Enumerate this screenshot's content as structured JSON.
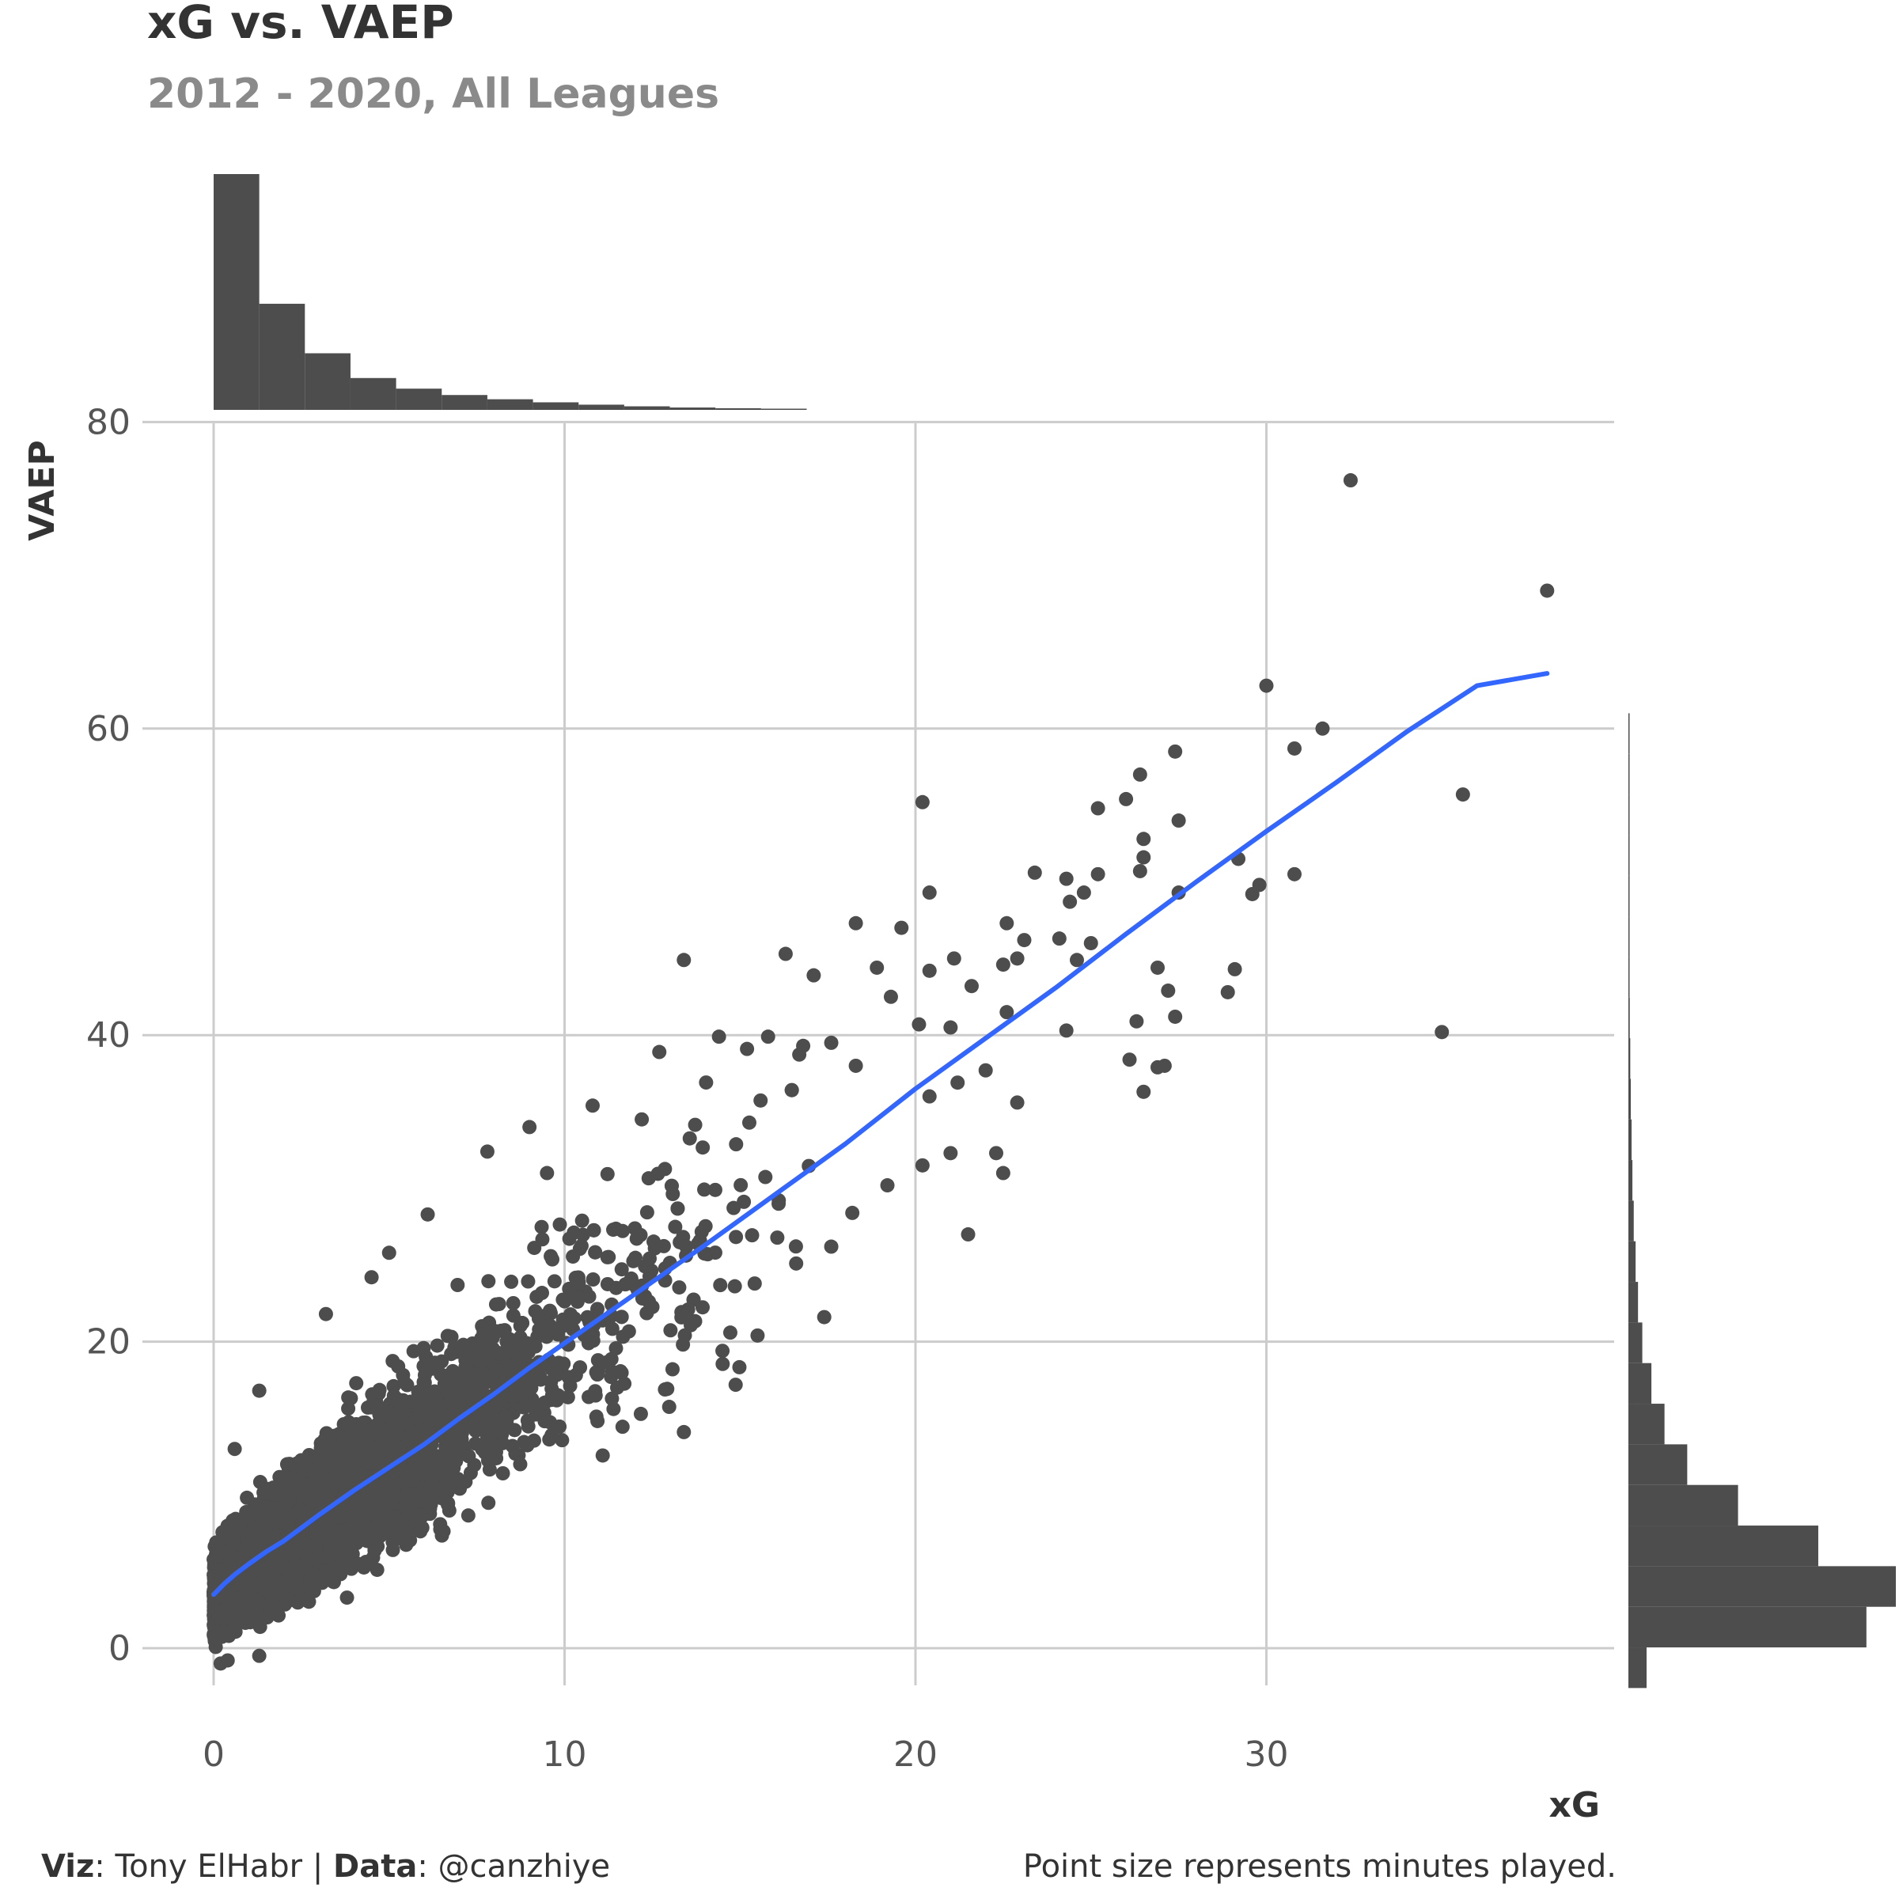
{
  "title": "xG vs. VAEP",
  "subtitle": "2012 - 2020, All Leagues",
  "caption": {
    "viz_label": "Viz",
    "viz_value": ": Tony ElHabr | ",
    "data_label": "Data",
    "data_value": ": @canzhiye",
    "note": "Point size represents minutes played."
  },
  "colors": {
    "points": "#4d4d4d",
    "fit_line": "#3366ff",
    "grid": "#cccccc",
    "bars": "#4d4d4d"
  },
  "chart_data": {
    "type": "scatter",
    "xlabel": "xG",
    "ylabel": "VAEP",
    "xlim": [
      0,
      40
    ],
    "ylim": [
      -4,
      80
    ],
    "x_ticks": [
      0,
      10,
      20,
      30
    ],
    "y_ticks": [
      0,
      20,
      40,
      60,
      80
    ],
    "x_tick_labels": [
      "0",
      "10",
      "20",
      "30"
    ],
    "y_tick_labels": [
      "0",
      "20",
      "40",
      "60",
      "80"
    ],
    "grid": true,
    "legend": "none",
    "outlier_points": [
      [
        32.4,
        76.2
      ],
      [
        38.0,
        69.0
      ],
      [
        30.0,
        62.8
      ],
      [
        31.6,
        60.0
      ],
      [
        30.8,
        58.7
      ],
      [
        35.6,
        55.7
      ],
      [
        20.2,
        55.2
      ],
      [
        27.4,
        58.5
      ],
      [
        26.4,
        57.0
      ],
      [
        25.2,
        54.8
      ],
      [
        26.0,
        55.4
      ],
      [
        27.5,
        54.0
      ],
      [
        26.5,
        52.8
      ],
      [
        26.5,
        51.6
      ],
      [
        26.4,
        50.7
      ],
      [
        29.2,
        51.5
      ],
      [
        30.8,
        50.5
      ],
      [
        29.8,
        49.8
      ],
      [
        29.6,
        49.2
      ],
      [
        27.5,
        49.3
      ],
      [
        23.4,
        50.6
      ],
      [
        24.3,
        50.2
      ],
      [
        25.2,
        50.5
      ],
      [
        24.4,
        48.7
      ],
      [
        24.8,
        49.3
      ],
      [
        20.4,
        49.3
      ],
      [
        35.0,
        40.2
      ],
      [
        29.1,
        44.3
      ],
      [
        28.9,
        42.8
      ],
      [
        27.2,
        42.9
      ],
      [
        26.9,
        44.4
      ],
      [
        27.4,
        41.2
      ],
      [
        26.3,
        40.9
      ],
      [
        24.3,
        40.3
      ],
      [
        26.5,
        36.3
      ],
      [
        26.9,
        37.9
      ],
      [
        27.1,
        38.0
      ],
      [
        26.1,
        38.4
      ],
      [
        22.9,
        35.6
      ],
      [
        21.5,
        27.0
      ],
      [
        22.5,
        31.0
      ],
      [
        22.3,
        32.3
      ],
      [
        13.4,
        44.9
      ],
      [
        16.3,
        45.3
      ],
      [
        18.3,
        47.3
      ],
      [
        19.6,
        47.0
      ],
      [
        20.4,
        44.2
      ],
      [
        21.6,
        43.2
      ],
      [
        22.6,
        47.3
      ],
      [
        23.1,
        46.2
      ],
      [
        24.1,
        46.3
      ],
      [
        24.6,
        44.9
      ],
      [
        25.0,
        46.0
      ],
      [
        22.5,
        44.6
      ],
      [
        21.1,
        45.0
      ],
      [
        17.1,
        43.9
      ],
      [
        18.9,
        44.4
      ],
      [
        19.3,
        42.5
      ],
      [
        20.1,
        40.7
      ],
      [
        22.6,
        41.5
      ],
      [
        22.9,
        45.0
      ],
      [
        21.0,
        40.5
      ],
      [
        20.4,
        36.0
      ],
      [
        21.2,
        36.9
      ],
      [
        22.0,
        37.7
      ],
      [
        20.2,
        31.5
      ],
      [
        21.0,
        32.3
      ],
      [
        19.2,
        30.2
      ],
      [
        18.2,
        28.4
      ],
      [
        17.6,
        26.2
      ],
      [
        16.6,
        25.1
      ],
      [
        17.4,
        21.6
      ],
      [
        12.2,
        34.5
      ],
      [
        12.7,
        38.9
      ],
      [
        14.4,
        39.9
      ],
      [
        15.8,
        39.9
      ],
      [
        15.2,
        39.1
      ],
      [
        16.8,
        39.3
      ],
      [
        17.6,
        39.5
      ],
      [
        18.3,
        38.0
      ],
      [
        16.1,
        29.0
      ],
      [
        15.5,
        20.4
      ],
      [
        14.5,
        19.4
      ],
      [
        11.5,
        17.0
      ],
      [
        13.4,
        14.1
      ],
      [
        0.6,
        13.0
      ],
      [
        9.5,
        31.0
      ],
      [
        7.8,
        32.4
      ],
      [
        9.0,
        34.0
      ],
      [
        10.8,
        35.4
      ],
      [
        6.1,
        28.3
      ],
      [
        5.0,
        25.8
      ],
      [
        4.5,
        24.2
      ],
      [
        3.2,
        21.8
      ],
      [
        1.3,
        16.8
      ],
      [
        0.4,
        -0.8
      ],
      [
        1.3,
        -0.5
      ],
      [
        2.2,
        4.5
      ],
      [
        3.8,
        3.3
      ],
      [
        0.2,
        -1.0
      ]
    ],
    "dense_cloud": {
      "description_of_bulk": "tens of thousands of player-season points concentrated along the trend",
      "x_range": [
        0,
        17
      ],
      "trend_spread_vaep": 3.2
    },
    "fit_line": {
      "x": [
        0,
        0.3,
        0.6,
        1,
        1.5,
        2,
        3,
        4,
        5,
        6,
        7,
        8,
        9,
        10,
        12,
        14,
        16,
        18,
        20,
        22,
        24,
        26,
        28,
        30,
        32,
        34,
        36,
        38
      ],
      "y": [
        3.5,
        4.2,
        4.8,
        5.5,
        6.3,
        7.0,
        8.7,
        10.3,
        11.8,
        13.3,
        15.0,
        16.6,
        18.3,
        19.9,
        23.1,
        26.3,
        29.6,
        32.9,
        36.5,
        39.8,
        43.1,
        46.6,
        50.0,
        53.3,
        56.5,
        59.8,
        62.8,
        63.6
      ]
    },
    "top_histogram": {
      "description": "marginal distribution of xG",
      "bin_width": 1.3,
      "bin_start": 0,
      "counts": [
        100,
        45,
        24,
        13.5,
        9,
        6.3,
        4.5,
        3.2,
        2.2,
        1.5,
        1.0,
        0.7,
        0.5
      ]
    },
    "right_histogram": {
      "description": "marginal distribution of VAEP",
      "bin_width": 2.65,
      "bin_start": -2.6,
      "counts": [
        6.8,
        89,
        100,
        71,
        41,
        22,
        13.5,
        8.6,
        5.2,
        3.6,
        2.7,
        2.0,
        1.5,
        1.2,
        0.9,
        0.7,
        0.5,
        0.4,
        0.3,
        0.3,
        0.2,
        0.2,
        0.15,
        0.15
      ]
    }
  }
}
